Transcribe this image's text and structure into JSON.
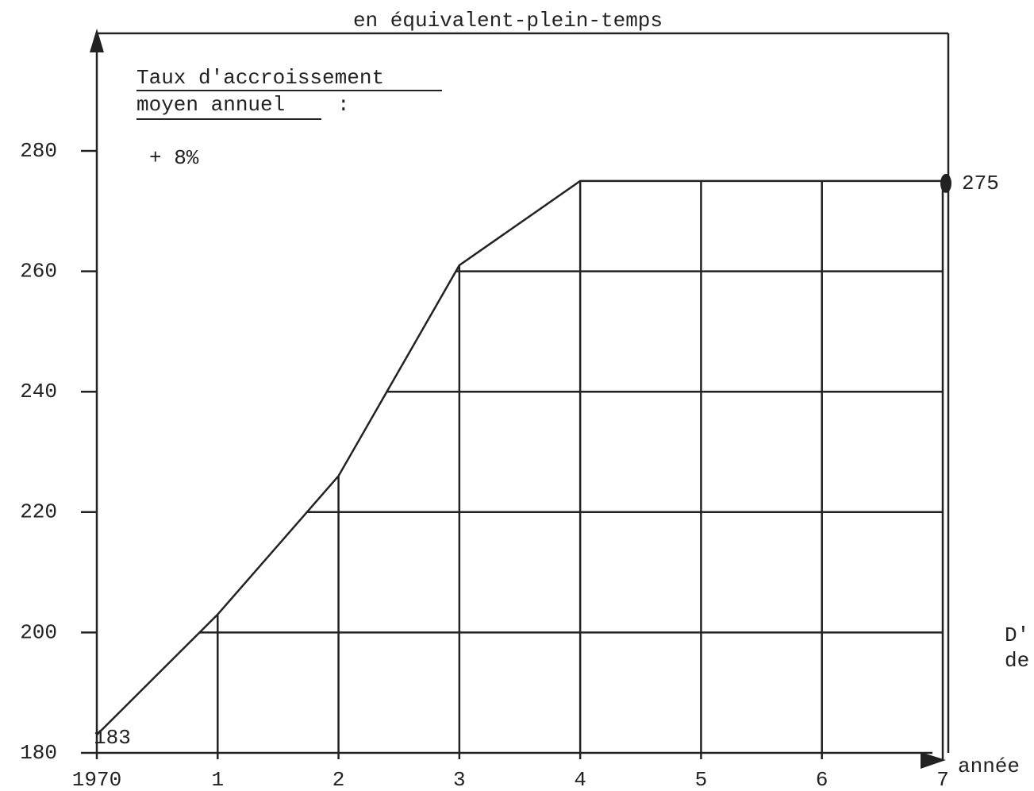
{
  "chart_data": {
    "type": "line",
    "title": "en équivalent-plein-temps",
    "note_line1": "Taux d'accroissement",
    "note_line2": "moyen annuel",
    "note_colon": ":",
    "rate": "+ 8%",
    "x_label": "année",
    "side_text": [
      "D'",
      "de"
    ],
    "x": [
      0,
      1,
      2,
      3,
      4,
      5,
      6,
      7
    ],
    "values": [
      183,
      203,
      226,
      261,
      275,
      275,
      275,
      275
    ],
    "color": "#222222",
    "xlim": [
      0,
      7
    ],
    "xticks": [
      {
        "value": 0,
        "label": "1970"
      },
      1,
      2,
      3,
      4,
      5,
      6,
      7
    ],
    "ylim": [
      180,
      280
    ],
    "yticks": [
      180,
      200,
      220,
      240,
      260,
      280
    ],
    "grid": true
  }
}
